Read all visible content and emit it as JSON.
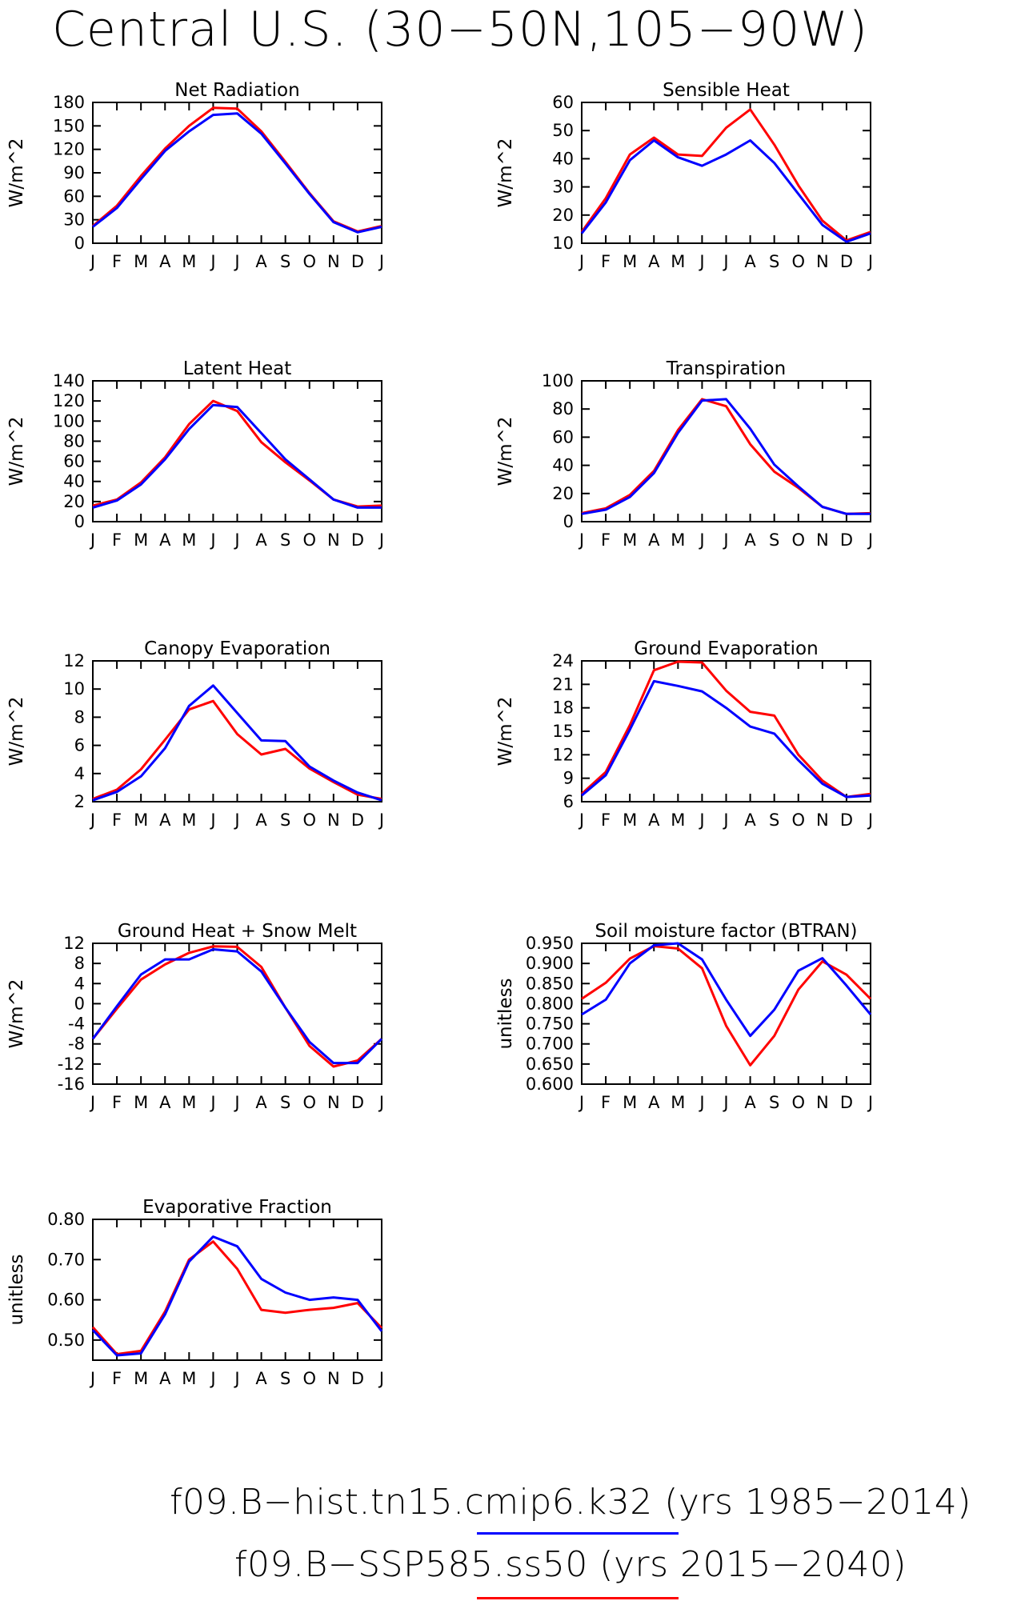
{
  "title": "Central U.S. (30−50N,105−90W)",
  "colors": {
    "hist": "#0000ff",
    "ssp": "#ff0000"
  },
  "legend": [
    {
      "label": "f09.B−hist.tn15.cmip6.k32  (yrs  1985−2014)",
      "color": "#0000ff"
    },
    {
      "label": "f09.B−SSP585.ss50  (yrs  2015−2040)",
      "color": "#ff0000"
    }
  ],
  "chart_data": [
    {
      "type": "line",
      "title": "Net Radiation",
      "ylabel": "W/m^2",
      "categories": [
        "J",
        "F",
        "M",
        "A",
        "M",
        "J",
        "J",
        "A",
        "S",
        "O",
        "N",
        "D",
        "J"
      ],
      "ylim": [
        0,
        180
      ],
      "yticks": [
        "0",
        "30",
        "60",
        "90",
        "120",
        "150",
        "180"
      ],
      "series": [
        {
          "key": "hist",
          "values": [
            21,
            45,
            82,
            118,
            143,
            164,
            166,
            140,
            102,
            63,
            27,
            14,
            21
          ]
        },
        {
          "key": "ssp",
          "values": [
            22,
            48,
            86,
            121,
            150,
            173,
            172,
            143,
            104,
            64,
            28,
            15,
            22
          ]
        }
      ]
    },
    {
      "type": "line",
      "title": "Sensible Heat",
      "ylabel": "W/m^2",
      "categories": [
        "J",
        "F",
        "M",
        "A",
        "M",
        "J",
        "J",
        "A",
        "S",
        "O",
        "N",
        "D",
        "J"
      ],
      "ylim": [
        10,
        60
      ],
      "yticks": [
        "10",
        "20",
        "30",
        "40",
        "50",
        "60"
      ],
      "series": [
        {
          "key": "hist",
          "values": [
            13.5,
            24.5,
            39.5,
            46.5,
            40.5,
            37.5,
            41.5,
            46.5,
            38.5,
            27.5,
            16.5,
            10.5,
            13.5
          ]
        },
        {
          "key": "ssp",
          "values": [
            14,
            26,
            41.5,
            47.5,
            41.5,
            41,
            51,
            57.5,
            45,
            30.5,
            18,
            11,
            14
          ]
        }
      ]
    },
    {
      "type": "line",
      "title": "Latent Heat",
      "ylabel": "W/m^2",
      "categories": [
        "J",
        "F",
        "M",
        "A",
        "M",
        "J",
        "J",
        "A",
        "S",
        "O",
        "N",
        "D",
        "J"
      ],
      "ylim": [
        0,
        140
      ],
      "yticks": [
        "0",
        "20",
        "40",
        "60",
        "80",
        "100",
        "120",
        "140"
      ],
      "series": [
        {
          "key": "hist",
          "values": [
            14,
            21,
            37,
            62,
            92,
            116,
            114,
            88,
            62,
            42,
            22,
            14,
            14
          ]
        },
        {
          "key": "ssp",
          "values": [
            16,
            22,
            39,
            64,
            97,
            120,
            110,
            79,
            59,
            41,
            22,
            15,
            16
          ]
        }
      ]
    },
    {
      "type": "line",
      "title": "Transpiration",
      "ylabel": "W/m^2",
      "categories": [
        "J",
        "F",
        "M",
        "A",
        "M",
        "J",
        "J",
        "A",
        "S",
        "O",
        "N",
        "D",
        "J"
      ],
      "ylim": [
        0,
        100
      ],
      "yticks": [
        "0",
        "20",
        "40",
        "60",
        "80",
        "100"
      ],
      "series": [
        {
          "key": "hist",
          "values": [
            5.5,
            8.5,
            17.5,
            34.5,
            63,
            86,
            87,
            66,
            40.5,
            25,
            10.5,
            5.5,
            5.5
          ]
        },
        {
          "key": "ssp",
          "values": [
            6,
            9.5,
            19,
            36,
            65,
            87,
            82,
            55,
            35.5,
            24,
            10.5,
            5.5,
            6
          ]
        }
      ]
    },
    {
      "type": "line",
      "title": "Canopy Evaporation",
      "ylabel": "W/m^2",
      "categories": [
        "J",
        "F",
        "M",
        "A",
        "M",
        "J",
        "J",
        "A",
        "S",
        "O",
        "N",
        "D",
        "J"
      ],
      "ylim": [
        2,
        12
      ],
      "yticks": [
        "2",
        "4",
        "6",
        "8",
        "10",
        "12"
      ],
      "series": [
        {
          "key": "hist",
          "values": [
            2.1,
            2.7,
            3.8,
            5.8,
            8.8,
            10.25,
            8.3,
            6.35,
            6.3,
            4.5,
            3.5,
            2.65,
            2.1
          ]
        },
        {
          "key": "ssp",
          "values": [
            2.2,
            2.85,
            4.3,
            6.4,
            8.55,
            9.15,
            6.8,
            5.35,
            5.75,
            4.35,
            3.4,
            2.5,
            2.2
          ]
        }
      ]
    },
    {
      "type": "line",
      "title": "Ground Evaporation",
      "ylabel": "W/m^2",
      "categories": [
        "J",
        "F",
        "M",
        "A",
        "M",
        "J",
        "J",
        "A",
        "S",
        "O",
        "N",
        "D",
        "J"
      ],
      "ylim": [
        6,
        24
      ],
      "yticks": [
        "6",
        "9",
        "12",
        "15",
        "18",
        "21",
        "24"
      ],
      "series": [
        {
          "key": "hist",
          "values": [
            6.8,
            9.4,
            15.2,
            21.4,
            20.8,
            20.1,
            18,
            15.6,
            14.7,
            11.3,
            8.3,
            6.6,
            6.8
          ]
        },
        {
          "key": "ssp",
          "values": [
            7,
            9.8,
            15.8,
            22.8,
            23.9,
            23.8,
            20.2,
            17.5,
            17,
            12,
            8.7,
            6.6,
            7
          ]
        }
      ]
    },
    {
      "type": "line",
      "title": "Ground Heat + Snow Melt",
      "ylabel": "W/m^2",
      "categories": [
        "J",
        "F",
        "M",
        "A",
        "M",
        "J",
        "J",
        "A",
        "S",
        "O",
        "N",
        "D",
        "J"
      ],
      "ylim": [
        -16,
        12
      ],
      "yticks": [
        "-16",
        "-12",
        "-8",
        "-4",
        "0",
        "4",
        "8",
        "12"
      ],
      "series": [
        {
          "key": "hist",
          "values": [
            -7,
            -0.5,
            5.8,
            8.8,
            8.8,
            10.8,
            10.4,
            6.4,
            -0.8,
            -7.6,
            -11.8,
            -11.8,
            -7
          ]
        },
        {
          "key": "ssp",
          "values": [
            -7,
            -1,
            4.8,
            7.8,
            10.1,
            11.4,
            11.3,
            7.3,
            -0.8,
            -8.4,
            -12.5,
            -11.3,
            -7
          ]
        }
      ]
    },
    {
      "type": "line",
      "title": "Soil moisture factor (BTRAN)",
      "ylabel": "unitless",
      "categories": [
        "J",
        "F",
        "M",
        "A",
        "M",
        "J",
        "J",
        "A",
        "S",
        "O",
        "N",
        "D",
        "J"
      ],
      "ylim": [
        0.6,
        0.95
      ],
      "yticks": [
        "0.600",
        "0.650",
        "0.700",
        "0.750",
        "0.800",
        "0.850",
        "0.900",
        "0.950"
      ],
      "series": [
        {
          "key": "hist",
          "values": [
            0.773,
            0.81,
            0.9,
            0.945,
            0.95,
            0.91,
            0.81,
            0.72,
            0.785,
            0.882,
            0.913,
            0.845,
            0.773
          ]
        },
        {
          "key": "ssp",
          "values": [
            0.812,
            0.852,
            0.912,
            0.943,
            0.937,
            0.888,
            0.745,
            0.647,
            0.72,
            0.835,
            0.905,
            0.872,
            0.812
          ]
        }
      ]
    },
    {
      "type": "line",
      "title": "Evaporative Fraction",
      "ylabel": "unitless",
      "categories": [
        "J",
        "F",
        "M",
        "A",
        "M",
        "J",
        "J",
        "A",
        "S",
        "O",
        "N",
        "D",
        "J"
      ],
      "ylim": [
        0.45,
        0.8
      ],
      "yticks": [
        "0.50",
        "0.60",
        "0.70",
        "0.80"
      ],
      "series": [
        {
          "key": "hist",
          "values": [
            0.525,
            0.462,
            0.467,
            0.564,
            0.695,
            0.757,
            0.733,
            0.652,
            0.618,
            0.6,
            0.606,
            0.6,
            0.522
          ]
        },
        {
          "key": "ssp",
          "values": [
            0.532,
            0.465,
            0.473,
            0.571,
            0.7,
            0.745,
            0.677,
            0.575,
            0.568,
            0.575,
            0.58,
            0.592,
            0.53
          ]
        }
      ]
    }
  ]
}
